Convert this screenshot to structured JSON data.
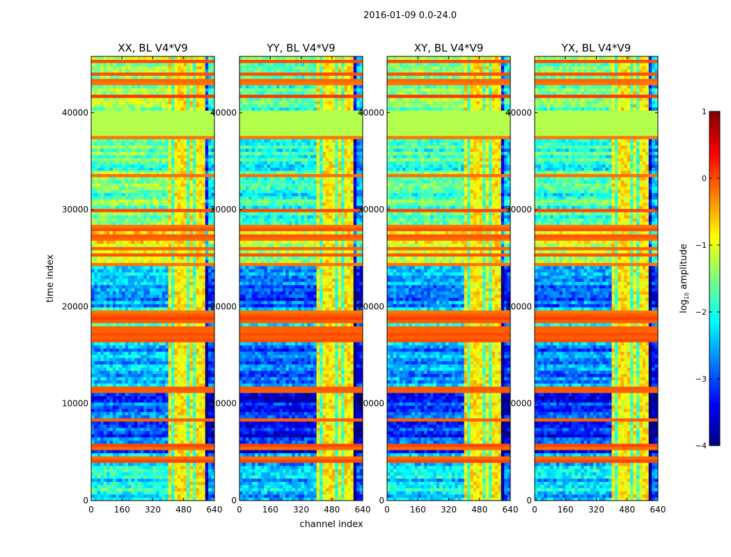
{
  "chart_data": {
    "type": "heatmap",
    "title": "2016-01-09 0.0-24.0",
    "xlabel": "channel index",
    "ylabel": "time index",
    "xlim": [
      0,
      640
    ],
    "ylim": [
      0,
      45800
    ],
    "xticks": [
      "0",
      "160",
      "320",
      "480",
      "640"
    ],
    "yticks": [
      "0",
      "10000",
      "20000",
      "30000",
      "40000"
    ],
    "xtick_values": [
      0,
      160,
      320,
      480,
      640
    ],
    "ytick_values": [
      0,
      10000,
      20000,
      30000,
      40000
    ],
    "panels": [
      {
        "title": "XX, BL V4*V9",
        "offset": 0.15
      },
      {
        "title": "YY, BL V4*V9",
        "offset": -0.25
      },
      {
        "title": "XY, BL V4*V9",
        "offset": 0.0
      },
      {
        "title": "YX, BL V4*V9",
        "offset": -0.1
      }
    ],
    "time_bands": [
      {
        "from": 0,
        "to": 1000,
        "log_amp": -2.4
      },
      {
        "from": 1000,
        "to": 5000,
        "log_amp": -2.3
      },
      {
        "from": 5000,
        "to": 11000,
        "log_amp": -3.1
      },
      {
        "from": 11000,
        "to": 16000,
        "log_amp": -2.7
      },
      {
        "from": 16000,
        "to": 20000,
        "log_amp": -1.9
      },
      {
        "from": 20000,
        "to": 24500,
        "log_amp": -2.6
      },
      {
        "from": 24500,
        "to": 28500,
        "log_amp": -1.2
      },
      {
        "from": 28500,
        "to": 37500,
        "log_amp": -1.8
      },
      {
        "from": 37500,
        "to": 40300,
        "log_amp": -1.25
      },
      {
        "from": 40300,
        "to": 45800,
        "log_amp": -1.6
      }
    ],
    "hot_rows": [
      4200,
      5600,
      8400,
      11500,
      16700,
      17300,
      17900,
      18600,
      19300,
      24400,
      25300,
      26100,
      27200,
      28000,
      28300,
      30000,
      33500,
      37400,
      41800,
      43200,
      44000,
      45300
    ],
    "hot_channel_range": [
      400,
      600
    ],
    "hot_channel_log_amp": -0.8,
    "dark_channels": [
      430,
      500,
      540,
      600
    ],
    "colorbar": {
      "label_main": "log",
      "label_sub": "10",
      "label_rest": " amplitude",
      "range": [
        -4,
        1
      ],
      "ticks": [
        "1",
        "0",
        "−1",
        "−2",
        "−3",
        "−4"
      ],
      "tick_values": [
        1,
        0,
        -1,
        -2,
        -3,
        -4
      ],
      "colormap": "jet"
    }
  }
}
